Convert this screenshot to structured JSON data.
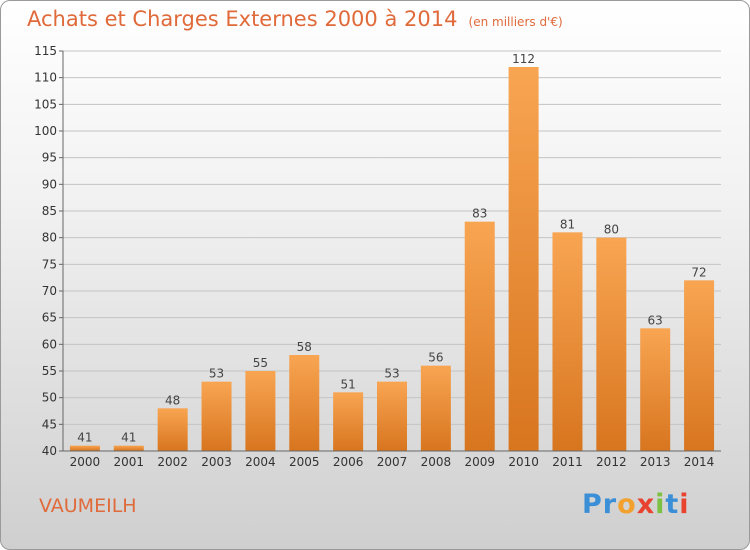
{
  "header": {
    "title": "Achats et Charges Externes 2000 à 2014",
    "unit": "(en milliers d'€)"
  },
  "footer": {
    "commune": "VAUMEILH",
    "brand_letters": [
      {
        "ch": "P",
        "color": "#3a8fd6"
      },
      {
        "ch": "r",
        "color": "#3a8fd6"
      },
      {
        "ch": "o",
        "color": "#f2a12e"
      },
      {
        "ch": "x",
        "color": "#e8432f"
      },
      {
        "ch": "i",
        "color": "#7cc142"
      },
      {
        "ch": "t",
        "color": "#3a8fd6"
      },
      {
        "ch": "i",
        "color": "#e8432f"
      }
    ]
  },
  "colors": {
    "accent_text": "#e06a3a",
    "bar_light": "#f8a552",
    "bar_dark": "#d8751f",
    "grid": "#c4c4c4"
  },
  "chart_data": {
    "type": "bar",
    "categories": [
      "2000",
      "2001",
      "2002",
      "2003",
      "2004",
      "2005",
      "2006",
      "2007",
      "2008",
      "2009",
      "2010",
      "2011",
      "2012",
      "2013",
      "2014"
    ],
    "values": [
      41,
      41,
      48,
      53,
      55,
      58,
      51,
      53,
      56,
      83,
      112,
      81,
      80,
      63,
      72
    ],
    "title": "Achats et Charges Externes 2000 à 2014",
    "ylim": [
      40,
      115
    ],
    "yticks": [
      40,
      45,
      50,
      55,
      60,
      65,
      70,
      75,
      80,
      85,
      90,
      95,
      100,
      105,
      110,
      115
    ],
    "grid": true,
    "legend": "none"
  }
}
